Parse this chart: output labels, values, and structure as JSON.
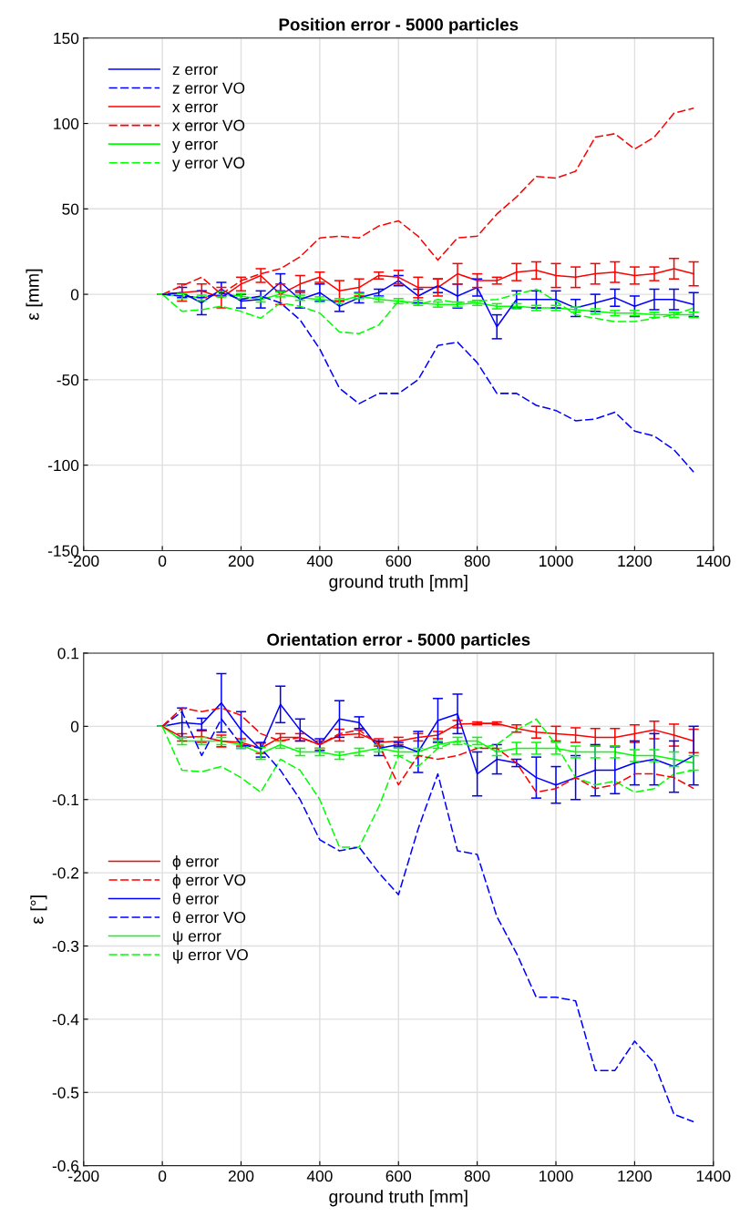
{
  "chart_data": [
    {
      "type": "line",
      "title": "Position error - 5000 particles",
      "xlabel": "ground truth [mm]",
      "ylabel": "ε [mm]",
      "x": [
        0,
        50,
        100,
        150,
        200,
        250,
        300,
        350,
        400,
        450,
        500,
        550,
        600,
        650,
        700,
        750,
        800,
        850,
        900,
        950,
        1000,
        1050,
        1100,
        1150,
        1200,
        1250,
        1300,
        1350
      ],
      "xlim": [
        -200,
        1400
      ],
      "xticks": [
        -200,
        0,
        200,
        400,
        600,
        800,
        1000,
        1200,
        1400
      ],
      "ylim": [
        -150,
        150
      ],
      "yticks": [
        -150,
        -100,
        -50,
        0,
        50,
        100,
        150
      ],
      "grid": true,
      "legend": "top left",
      "series": [
        {
          "name": "z error",
          "color": "#0000ff",
          "line_style": "solid",
          "values": [
            0,
            1,
            -5,
            3,
            -4,
            -3,
            7,
            -3,
            1,
            -7,
            -2,
            1,
            8,
            -1,
            5,
            -1,
            4,
            -19,
            -3,
            -3,
            -3,
            -8,
            -5,
            -2,
            -7,
            -3,
            -3,
            -6
          ],
          "errors": [
            0,
            3,
            7,
            4,
            4,
            5,
            5,
            5,
            5,
            3,
            3,
            2,
            3,
            4,
            4,
            7,
            5,
            7,
            5,
            5,
            5,
            5,
            5,
            5,
            6,
            6,
            6,
            7
          ]
        },
        {
          "name": "z error VO",
          "color": "#0000ff",
          "line_style": "dashed",
          "values": [
            0,
            -1,
            -2,
            1,
            -3,
            -1,
            -5,
            -15,
            -32,
            -55,
            -64,
            -58,
            -58,
            -50,
            -30,
            -28,
            -40,
            -58,
            -58,
            -65,
            -68,
            -74,
            -73,
            -69,
            -80,
            -83,
            -91,
            -104
          ]
        },
        {
          "name": "x error",
          "color": "#ff0000",
          "line_style": "solid",
          "values": [
            0,
            1,
            2,
            -2,
            6,
            11,
            0,
            6,
            10,
            2,
            4,
            11,
            10,
            4,
            4,
            12,
            8,
            8,
            13,
            14,
            11,
            10,
            12,
            13,
            11,
            12,
            15,
            12
          ],
          "errors": [
            0,
            5,
            4,
            6,
            4,
            4,
            6,
            5,
            3,
            6,
            5,
            2,
            4,
            6,
            5,
            6,
            4,
            2,
            5,
            5,
            7,
            6,
            6,
            6,
            5,
            4,
            6,
            7
          ]
        },
        {
          "name": "x error VO",
          "color": "#ff0000",
          "line_style": "dashed",
          "values": [
            0,
            5,
            10,
            0,
            8,
            12,
            15,
            22,
            33,
            34,
            33,
            40,
            43,
            34,
            20,
            33,
            34,
            47,
            57,
            69,
            68,
            72,
            92,
            94,
            85,
            92,
            106,
            109
          ]
        },
        {
          "name": "y error",
          "color": "#00ff00",
          "line_style": "solid",
          "values": [
            0,
            -1,
            -2,
            0,
            -1,
            -3,
            0,
            -2,
            -3,
            -4,
            -1,
            -3,
            -4,
            -5,
            -6,
            -6,
            -5,
            -7,
            -7,
            -8,
            -8,
            -9,
            -10,
            -11,
            -11,
            -12,
            -12,
            -12
          ],
          "errors": [
            0,
            1.5,
            1.5,
            1.5,
            1.5,
            1.5,
            1.5,
            1.5,
            1.5,
            1.5,
            1.5,
            1.5,
            1.5,
            1.5,
            1.5,
            1.5,
            1.5,
            1.5,
            1.5,
            1.5,
            1.5,
            1.5,
            1.5,
            1.5,
            1.5,
            1.5,
            1.5,
            1.5
          ]
        },
        {
          "name": "y error VO",
          "color": "#00ff00",
          "line_style": "dashed",
          "values": [
            0,
            -10,
            -9,
            -7,
            -10,
            -14,
            -5,
            -7,
            -11,
            -22,
            -23,
            -18,
            -4,
            -6,
            -3,
            -5,
            -4,
            -3,
            0,
            3,
            -4,
            -12,
            -14,
            -16,
            -16,
            -14,
            -12,
            -8
          ]
        }
      ]
    },
    {
      "type": "line",
      "title": "Orientation error - 5000 particles",
      "xlabel": "ground truth [mm]",
      "ylabel": "ε [°]",
      "x": [
        0,
        50,
        100,
        150,
        200,
        250,
        300,
        350,
        400,
        450,
        500,
        550,
        600,
        650,
        700,
        750,
        800,
        850,
        900,
        950,
        1000,
        1050,
        1100,
        1150,
        1200,
        1250,
        1300,
        1350
      ],
      "xlim": [
        -200,
        1400
      ],
      "xticks": [
        -200,
        0,
        200,
        400,
        600,
        800,
        1000,
        1200,
        1400
      ],
      "ylim": [
        -0.6,
        0.1
      ],
      "yticks": [
        -0.6,
        -0.5,
        -0.4,
        -0.3,
        -0.2,
        -0.1,
        0,
        0.1
      ],
      "grid": true,
      "legend": "left",
      "series": [
        {
          "name": "ϕ error",
          "color": "#ff0000",
          "line_style": "solid",
          "values": [
            0,
            -0.015,
            -0.014,
            -0.02,
            -0.022,
            -0.03,
            -0.015,
            -0.015,
            -0.025,
            -0.012,
            -0.01,
            -0.022,
            -0.02,
            -0.015,
            -0.012,
            0.003,
            0.004,
            0.004,
            -0.003,
            -0.008,
            -0.01,
            -0.012,
            -0.015,
            -0.015,
            -0.01,
            -0.005,
            -0.012,
            -0.02
          ],
          "errors": [
            0,
            0.005,
            0.008,
            0.008,
            0.005,
            0.007,
            0.005,
            0.005,
            0.005,
            0.008,
            0.005,
            0.005,
            0.005,
            0.005,
            0.005,
            0.005,
            0.002,
            0.002,
            0.005,
            0.008,
            0.01,
            0.01,
            0.012,
            0.012,
            0.012,
            0.012,
            0.015,
            0.016
          ]
        },
        {
          "name": "ϕ error VO",
          "color": "#ff0000",
          "line_style": "dashed",
          "values": [
            0,
            0.025,
            0.02,
            0.025,
            0.015,
            -0.01,
            -0.02,
            -0.015,
            -0.025,
            -0.01,
            -0.005,
            -0.025,
            -0.08,
            -0.04,
            -0.045,
            -0.04,
            -0.03,
            -0.03,
            -0.05,
            -0.09,
            -0.085,
            -0.07,
            -0.085,
            -0.08,
            -0.065,
            -0.065,
            -0.07,
            -0.085
          ]
        },
        {
          "name": "θ error",
          "color": "#0000ff",
          "line_style": "solid",
          "values": [
            0,
            0.005,
            0.003,
            0.032,
            -0.005,
            -0.032,
            0.03,
            -0.005,
            -0.025,
            0.01,
            0.005,
            -0.03,
            -0.025,
            -0.035,
            0.008,
            0.017,
            -0.065,
            -0.045,
            -0.05,
            -0.07,
            -0.08,
            -0.07,
            -0.06,
            -0.06,
            -0.05,
            -0.045,
            -0.055,
            -0.04
          ],
          "errors": [
            0,
            0.02,
            0.008,
            0.04,
            0.025,
            0.01,
            0.025,
            0.015,
            0.008,
            0.025,
            0.008,
            0.01,
            0.003,
            0.028,
            0.03,
            0.027,
            0.03,
            0.02,
            0.005,
            0.028,
            0.025,
            0.03,
            0.035,
            0.032,
            0.03,
            0.035,
            0.035,
            0.04
          ]
        },
        {
          "name": "θ error VO",
          "color": "#0000ff",
          "line_style": "dashed",
          "values": [
            0,
            0.02,
            -0.04,
            0.01,
            -0.025,
            -0.03,
            -0.06,
            -0.1,
            -0.155,
            -0.17,
            -0.165,
            -0.2,
            -0.23,
            -0.14,
            -0.065,
            -0.17,
            -0.175,
            -0.26,
            -0.31,
            -0.37,
            -0.37,
            -0.375,
            -0.47,
            -0.47,
            -0.43,
            -0.46,
            -0.53,
            -0.54
          ]
        },
        {
          "name": "ψ error",
          "color": "#00ff00",
          "line_style": "solid",
          "values": [
            0,
            -0.02,
            -0.02,
            -0.02,
            -0.025,
            -0.037,
            -0.025,
            -0.035,
            -0.035,
            -0.04,
            -0.035,
            -0.03,
            -0.035,
            -0.035,
            -0.025,
            -0.02,
            -0.02,
            -0.035,
            -0.03,
            -0.03,
            -0.03,
            -0.035,
            -0.035,
            -0.035,
            -0.04,
            -0.04,
            -0.045,
            -0.05
          ],
          "errors": [
            0,
            0.005,
            0.005,
            0.005,
            0.005,
            0.008,
            0.005,
            0.005,
            0.005,
            0.005,
            0.005,
            0.005,
            0.005,
            0.005,
            0.005,
            0.005,
            0.005,
            0.005,
            0.008,
            0.008,
            0.008,
            0.008,
            0.008,
            0.008,
            0.008,
            0.008,
            0.01,
            0.01
          ]
        },
        {
          "name": "ψ error VO",
          "color": "#00ff00",
          "line_style": "dashed",
          "values": [
            0,
            -0.06,
            -0.062,
            -0.055,
            -0.07,
            -0.09,
            -0.045,
            -0.06,
            -0.1,
            -0.165,
            -0.165,
            -0.11,
            -0.04,
            -0.055,
            -0.03,
            -0.02,
            -0.03,
            -0.025,
            -0.005,
            0.01,
            -0.025,
            -0.07,
            -0.08,
            -0.075,
            -0.09,
            -0.085,
            -0.065,
            -0.06
          ]
        }
      ]
    }
  ]
}
